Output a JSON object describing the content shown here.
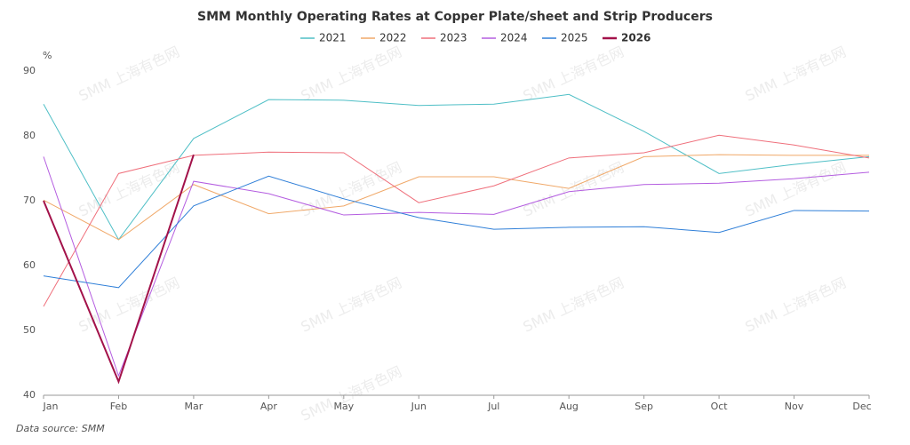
{
  "chart_data": {
    "type": "line",
    "title": "SMM Monthly Operating Rates at Copper Plate/sheet and Strip Producers",
    "y_unit": "%",
    "source": "Data source:  SMM",
    "watermark": "SMM 上海有色网",
    "categories": [
      "Jan",
      "Feb",
      "Mar",
      "Apr",
      "May",
      "Jun",
      "Jul",
      "Aug",
      "Sep",
      "Oct",
      "Nov",
      "Dec"
    ],
    "ylim": [
      40,
      90
    ],
    "yticks": [
      40,
      50,
      60,
      70,
      80,
      90
    ],
    "grid": false,
    "series": [
      {
        "name": "2021",
        "color": "#4fbfc6",
        "line_width": 1,
        "values": [
          84.9,
          64.0,
          79.6,
          85.6,
          85.5,
          84.7,
          84.9,
          86.4,
          80.7,
          74.2,
          75.6,
          76.8
        ]
      },
      {
        "name": "2022",
        "color": "#f0a868",
        "line_width": 1,
        "values": [
          70.1,
          64.0,
          72.5,
          68.0,
          69.2,
          73.7,
          73.7,
          71.9,
          76.8,
          77.1,
          77.0,
          77.0
        ]
      },
      {
        "name": "2023",
        "color": "#ef6f7b",
        "line_width": 1,
        "values": [
          53.7,
          74.2,
          77.0,
          77.5,
          77.4,
          69.7,
          72.3,
          76.6,
          77.4,
          80.1,
          78.6,
          76.6
        ]
      },
      {
        "name": "2024",
        "color": "#b45de0",
        "line_width": 1,
        "values": [
          76.8,
          43.0,
          73.0,
          71.1,
          67.8,
          68.2,
          67.9,
          71.4,
          72.5,
          72.7,
          73.4,
          74.4
        ]
      },
      {
        "name": "2025",
        "color": "#2f7fd8",
        "line_width": 1,
        "values": [
          58.4,
          56.6,
          69.2,
          73.8,
          70.3,
          67.4,
          65.6,
          65.9,
          66.0,
          65.1,
          68.5,
          68.4
        ]
      },
      {
        "name": "2026",
        "color": "#a3124a",
        "line_width": 2,
        "values": [
          70.0,
          42.1,
          77.1,
          null,
          null,
          null,
          null,
          null,
          null,
          null,
          null,
          null
        ]
      }
    ]
  }
}
